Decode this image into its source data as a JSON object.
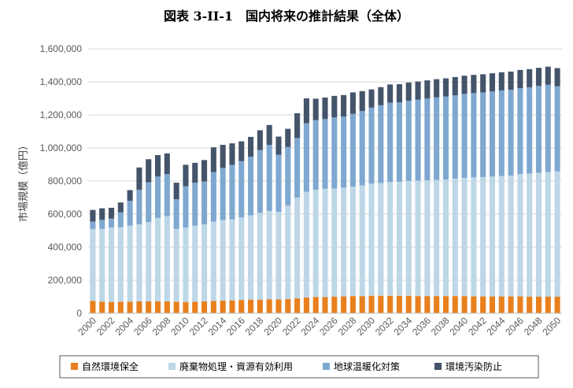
{
  "chart_data": {
    "type": "bar",
    "stacked": true,
    "title": "図表  3-II-1　国内将来の推計結果（全体）",
    "ylabel": "市場規模（億円）",
    "xlabel": "",
    "ylim": [
      0,
      1600000
    ],
    "yticks": [
      0,
      200000,
      400000,
      600000,
      800000,
      1000000,
      1200000,
      1400000,
      1600000
    ],
    "ytick_labels": [
      "0",
      "200,000",
      "400,000",
      "600,000",
      "800,000",
      "1,000,000",
      "1,200,000",
      "1,400,000",
      "1,600,000"
    ],
    "grid": true,
    "legend_position": "bottom",
    "categories": [
      "2000",
      "2001",
      "2002",
      "2003",
      "2004",
      "2005",
      "2006",
      "2007",
      "2008",
      "2009",
      "2010",
      "2011",
      "2012",
      "2013",
      "2014",
      "2015",
      "2016",
      "2017",
      "2018",
      "2019",
      "2020",
      "2021",
      "2022",
      "2023",
      "2024",
      "2025",
      "2026",
      "2027",
      "2028",
      "2029",
      "2030",
      "2031",
      "2032",
      "2033",
      "2034",
      "2035",
      "2036",
      "2037",
      "2038",
      "2039",
      "2040",
      "2041",
      "2042",
      "2043",
      "2044",
      "2045",
      "2046",
      "2047",
      "2048",
      "2049",
      "2050"
    ],
    "xtick_labels": [
      "2000",
      "2002",
      "2004",
      "2006",
      "2008",
      "2010",
      "2012",
      "2014",
      "2016",
      "2018",
      "2020",
      "2022",
      "2024",
      "2026",
      "2028",
      "2030",
      "2032",
      "2034",
      "2036",
      "2038",
      "2040",
      "2042",
      "2044",
      "2046",
      "2048",
      "2050"
    ],
    "series": [
      {
        "name": "自然環境保全",
        "color": "#e8801e",
        "values": [
          75000,
          70000,
          68000,
          70000,
          70000,
          72000,
          72000,
          72000,
          72000,
          70000,
          68000,
          70000,
          72000,
          74000,
          76000,
          78000,
          80000,
          82000,
          82000,
          84000,
          84000,
          86000,
          90000,
          95000,
          98000,
          98000,
          100000,
          102000,
          104000,
          104000,
          106000,
          106000,
          106000,
          106000,
          106000,
          104000,
          104000,
          104000,
          104000,
          104000,
          104000,
          102000,
          102000,
          102000,
          102000,
          102000,
          102000,
          100000,
          100000,
          100000,
          100000
        ]
      },
      {
        "name": "廃棄物処理・資源有効利用",
        "color": "#bdd7e7",
        "values": [
          435000,
          440000,
          450000,
          450000,
          460000,
          465000,
          480000,
          505000,
          515000,
          440000,
          450000,
          460000,
          465000,
          480000,
          488000,
          490000,
          500000,
          510000,
          525000,
          535000,
          530000,
          565000,
          610000,
          640000,
          650000,
          655000,
          655000,
          658000,
          662000,
          670000,
          678000,
          682000,
          688000,
          690000,
          695000,
          698000,
          700000,
          702000,
          705000,
          710000,
          715000,
          720000,
          722000,
          725000,
          728000,
          730000,
          740000,
          745000,
          750000,
          755000,
          758000
        ]
      },
      {
        "name": "地球温暖化対策",
        "color": "#7fa8d0",
        "values": [
          45000,
          55000,
          55000,
          90000,
          150000,
          210000,
          240000,
          250000,
          255000,
          180000,
          250000,
          260000,
          260000,
          300000,
          315000,
          330000,
          340000,
          355000,
          380000,
          400000,
          345000,
          355000,
          360000,
          415000,
          420000,
          422000,
          430000,
          430000,
          440000,
          450000,
          460000,
          470000,
          480000,
          480000,
          485000,
          490000,
          495000,
          500000,
          502000,
          505000,
          508000,
          510000,
          512000,
          515000,
          518000,
          520000,
          520000,
          522000,
          525000,
          527000,
          515000
        ]
      },
      {
        "name": "環境汚染防止",
        "color": "#44546a",
        "values": [
          70000,
          70000,
          65000,
          60000,
          65000,
          135000,
          140000,
          130000,
          125000,
          100000,
          130000,
          120000,
          130000,
          150000,
          140000,
          130000,
          120000,
          120000,
          120000,
          120000,
          110000,
          110000,
          150000,
          150000,
          130000,
          130000,
          130000,
          130000,
          130000,
          120000,
          110000,
          110000,
          110000,
          110000,
          110000,
          110000,
          110000,
          110000,
          110000,
          110000,
          110000,
          110000,
          110000,
          110000,
          110000,
          110000,
          110000,
          110000,
          110000,
          110000,
          110000
        ]
      }
    ]
  }
}
